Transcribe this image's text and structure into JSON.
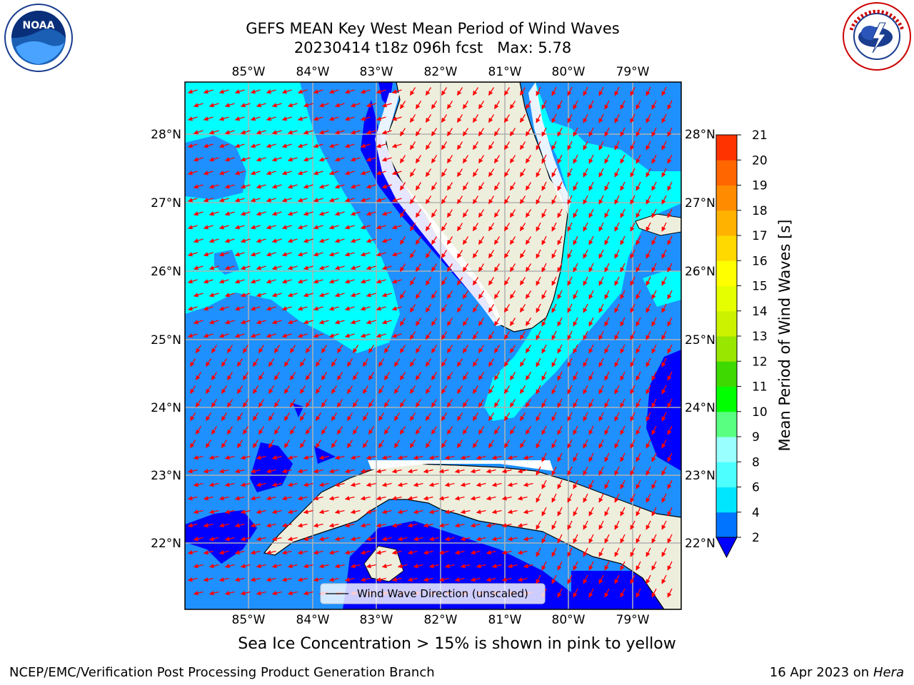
{
  "header": {
    "title": "GEFS MEAN Key West Mean Period of Wind Waves",
    "subtitle": "20230414 t18z 096h fcst",
    "max_label": "Max: 5.78"
  },
  "logos": {
    "left": "NOAA",
    "right": "NATIONAL WEATHER SERVICE"
  },
  "map": {
    "lon_labels": [
      "85°W",
      "84°W",
      "83°W",
      "82°W",
      "81°W",
      "80°W",
      "79°W"
    ],
    "lat_labels": [
      "28°N",
      "27°N",
      "26°N",
      "25°N",
      "24°N",
      "23°N",
      "22°N"
    ],
    "lon_values": [
      -85,
      -84,
      -83,
      -82,
      -81,
      -80,
      -79
    ],
    "lat_values": [
      28,
      27,
      26,
      25,
      24,
      23,
      22
    ],
    "extent": {
      "lon_min": -86,
      "lon_max": -78.25,
      "lat_min": 21,
      "lat_max": 28.75
    },
    "legend_label": "Wind Wave Direction (unscaled)",
    "colors": {
      "ocean_2_4": "#1e90ff",
      "ocean_4_6": "#00ffff",
      "ocean_lt_2": "#0000ff",
      "land": "#eeeedd",
      "arrows": "#ff0000",
      "gridlines": "#b0b0b0"
    }
  },
  "colorbar": {
    "label": "Mean Period of Wind Waves [s]",
    "ticks": [
      "2",
      "4",
      "6",
      "8",
      "9",
      "10",
      "11",
      "12",
      "13",
      "14",
      "15",
      "16",
      "17",
      "18",
      "19",
      "20",
      "21"
    ],
    "colors": [
      "#0073ff",
      "#00e6ff",
      "#4dffff",
      "#99ffff",
      "#59ff80",
      "#00ff00",
      "#3dd900",
      "#99e600",
      "#ccf200",
      "#e6ff00",
      "#ffff00",
      "#ffd900",
      "#ffb300",
      "#ff8c00",
      "#ff6600",
      "#ff3300",
      "#ff0000"
    ],
    "extend_color": "#0000ff"
  },
  "ice_note": "Sea Ice Concentration > 15% is shown in pink to yellow",
  "footer": {
    "left": "NCEP/EMC/Verification Post Processing Product Generation Branch",
    "date": "16 Apr 2023 on",
    "host": "Hera"
  }
}
